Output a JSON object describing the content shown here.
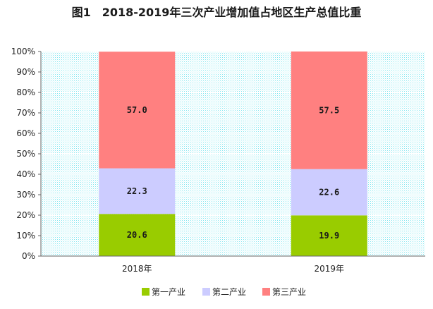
{
  "chart_data": {
    "type": "bar",
    "stacked": true,
    "title": "图1　2018-2019年三次产业增加值占地区生产总值比重",
    "categories": [
      "2018年",
      "2019年"
    ],
    "series": [
      {
        "name": "第一产业",
        "values": [
          20.6,
          19.9
        ],
        "color": "#99cc00"
      },
      {
        "name": "第二产业",
        "values": [
          22.3,
          22.6
        ],
        "color": "#ccccff"
      },
      {
        "name": "第三产业",
        "values": [
          57.0,
          57.5
        ],
        "color": "#ff8080"
      }
    ],
    "value_labels": [
      [
        "20.6",
        "19.9"
      ],
      [
        "22.3",
        "22.6"
      ],
      [
        "57.0",
        "57.5"
      ]
    ],
    "ylim": [
      0,
      100
    ],
    "yticks": [
      "0%",
      "10%",
      "20%",
      "30%",
      "40%",
      "50%",
      "60%",
      "70%",
      "80%",
      "90%",
      "100%"
    ],
    "grid": true,
    "plot_background": "dotted-cyan",
    "legend_position": "bottom"
  }
}
